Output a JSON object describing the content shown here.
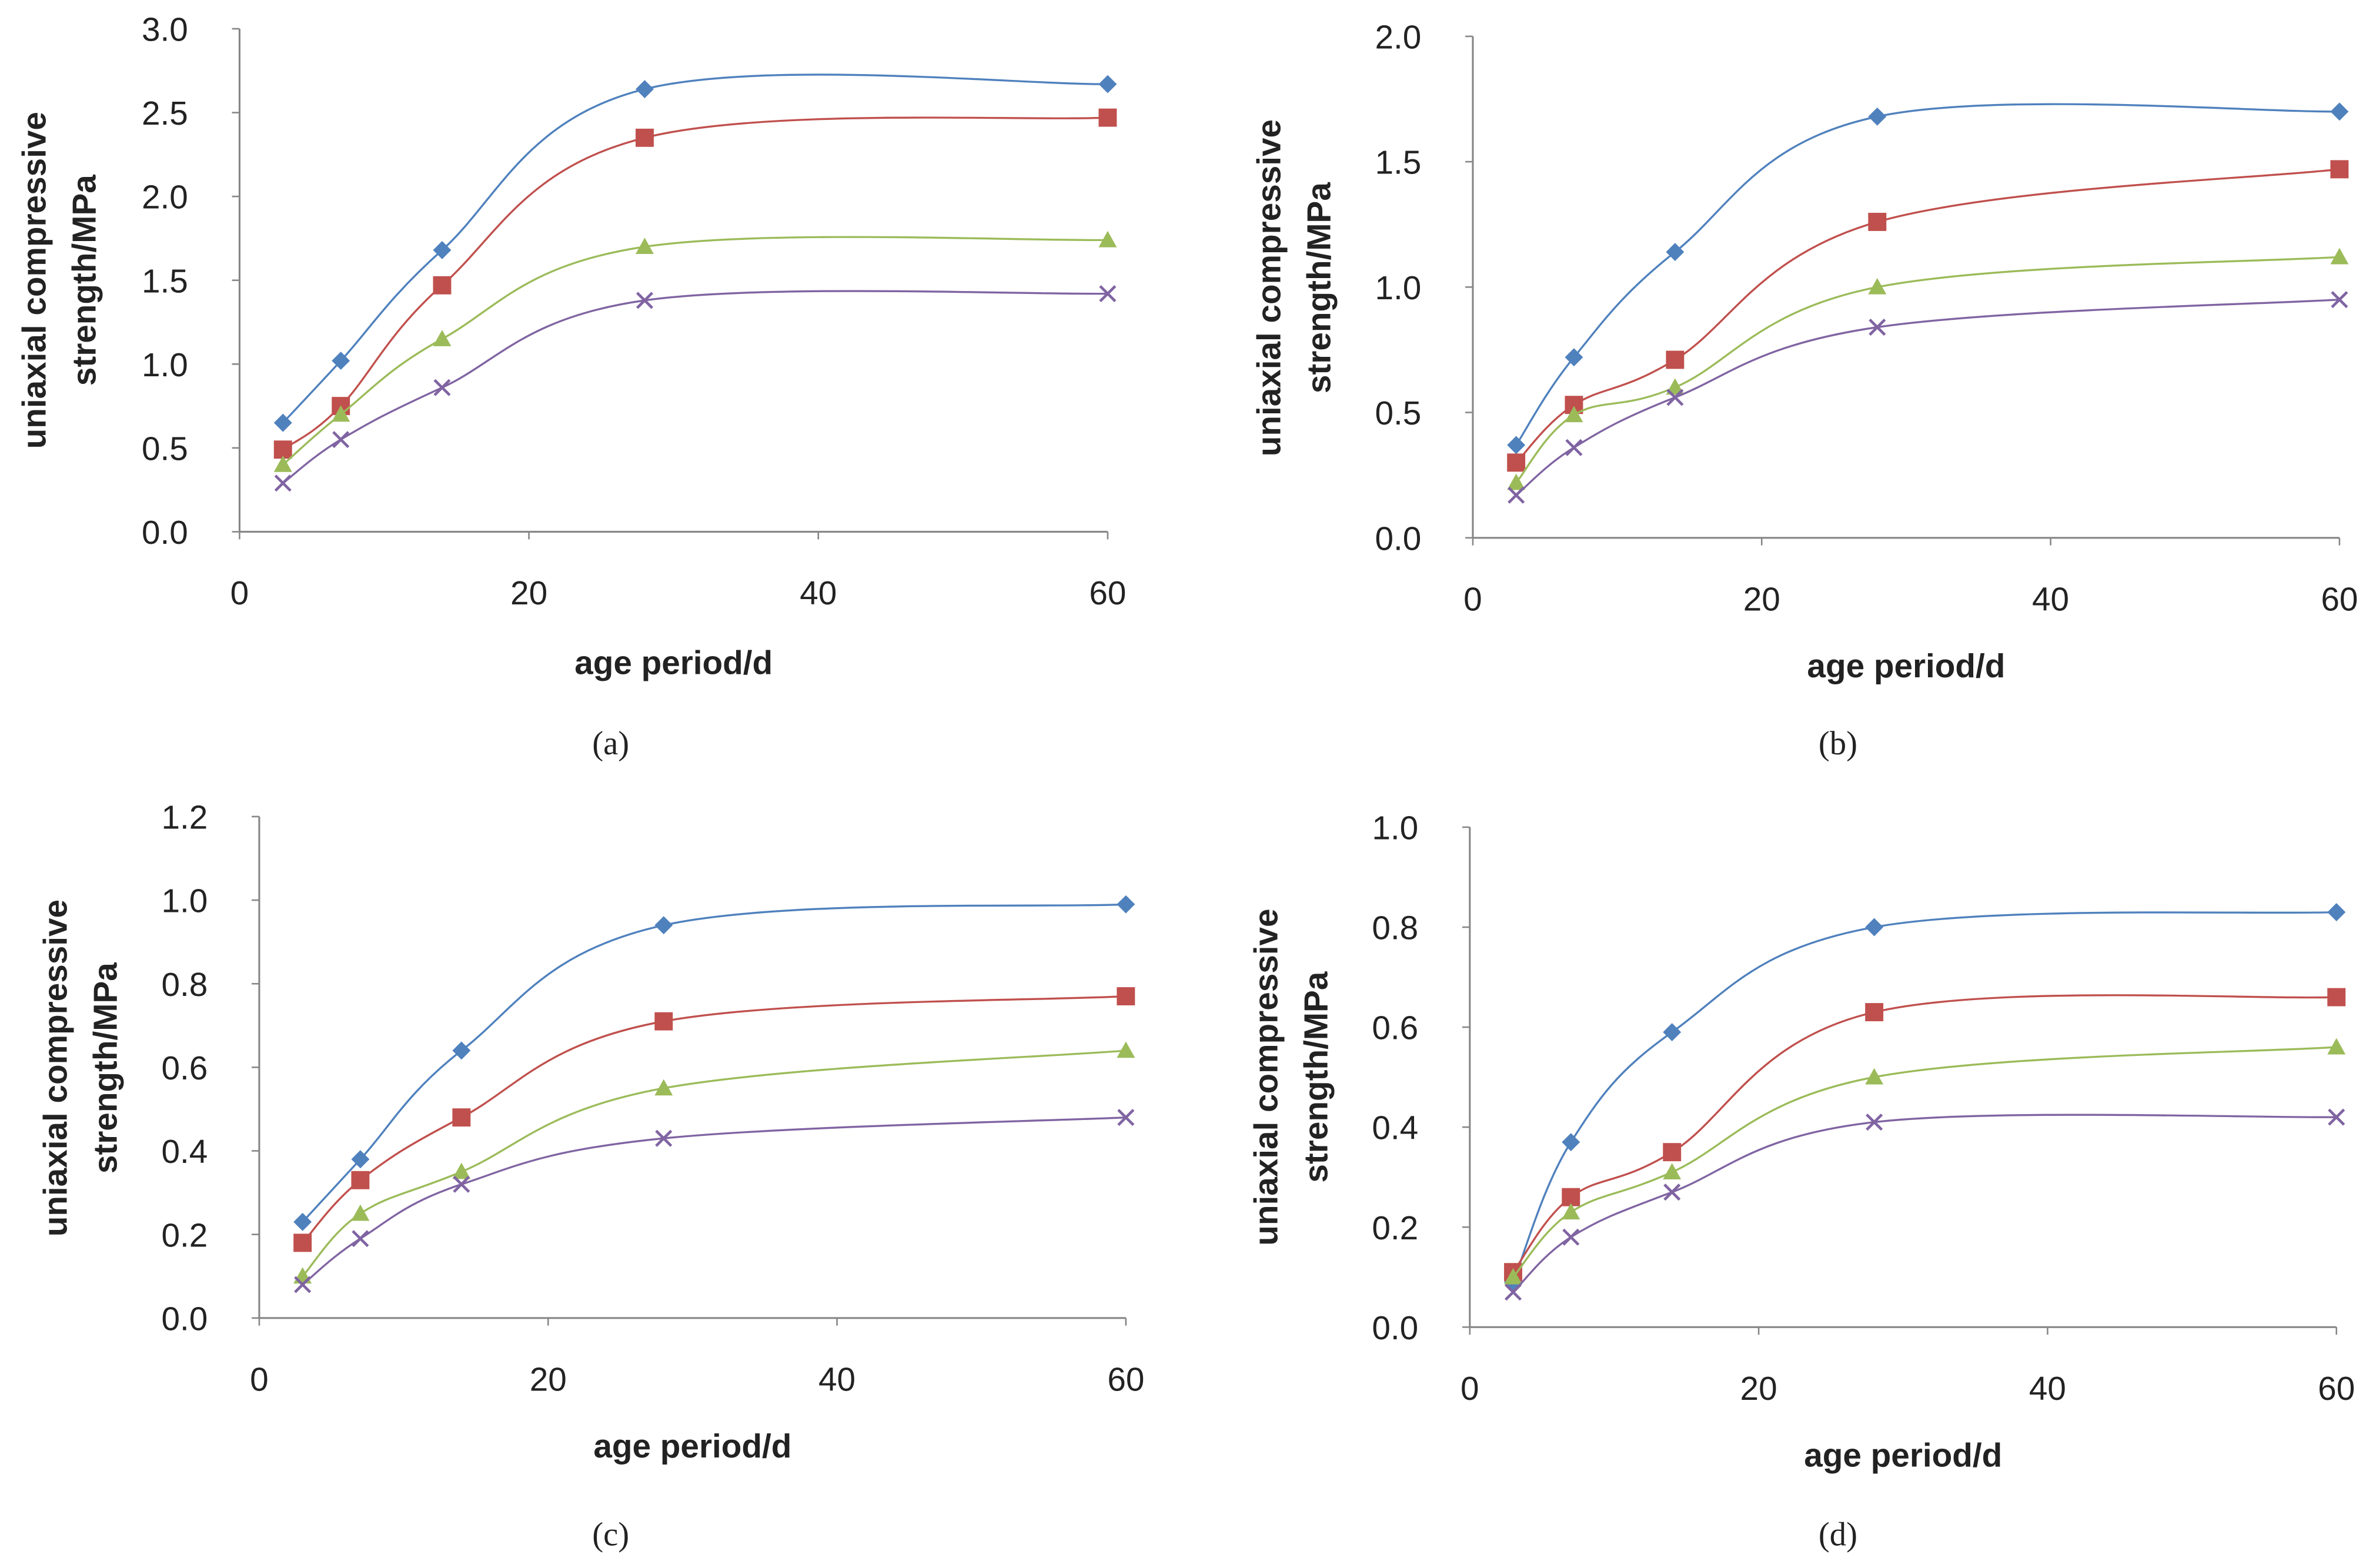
{
  "chart_data": [
    {
      "type": "line",
      "panel_label": "(a)",
      "xlabel": "age period/d",
      "ylabel": [
        "uniaxial compressive",
        "strength/MPa"
      ],
      "xlim": [
        0,
        60
      ],
      "xticks": [
        "0",
        "20",
        "40",
        "60"
      ],
      "ylim": [
        0,
        3.0
      ],
      "yticks": [
        "0.0",
        "0.5",
        "1.0",
        "1.5",
        "2.0",
        "2.5",
        "3.0"
      ],
      "x": [
        3,
        7,
        14,
        28,
        60
      ],
      "series": [
        {
          "marker": "diamond",
          "color": "#4F81BD",
          "values": [
            0.65,
            1.02,
            1.68,
            2.64,
            2.67
          ]
        },
        {
          "marker": "square",
          "color": "#C0504D",
          "values": [
            0.49,
            0.75,
            1.47,
            2.35,
            2.47
          ]
        },
        {
          "marker": "triangle",
          "color": "#9BBB59",
          "values": [
            0.4,
            0.7,
            1.15,
            1.7,
            1.74
          ]
        },
        {
          "marker": "x",
          "color": "#8064A2",
          "values": [
            0.29,
            0.55,
            0.86,
            1.38,
            1.42
          ]
        }
      ]
    },
    {
      "type": "line",
      "panel_label": "(b)",
      "xlabel": "age period/d",
      "ylabel": [
        "uniaxial compressive",
        "strength/MPa"
      ],
      "xlim": [
        0,
        60
      ],
      "xticks": [
        "0",
        "20",
        "40",
        "60"
      ],
      "ylim": [
        0,
        2.0
      ],
      "yticks": [
        "0.0",
        "0.5",
        "1.0",
        "1.5",
        "2.0"
      ],
      "x": [
        3,
        7,
        14,
        28,
        60
      ],
      "series": [
        {
          "marker": "diamond",
          "color": "#4F81BD",
          "values": [
            0.37,
            0.72,
            1.14,
            1.68,
            1.7
          ]
        },
        {
          "marker": "square",
          "color": "#C0504D",
          "values": [
            0.3,
            0.53,
            0.71,
            1.26,
            1.47
          ]
        },
        {
          "marker": "triangle",
          "color": "#9BBB59",
          "values": [
            0.22,
            0.49,
            0.6,
            1.0,
            1.12
          ]
        },
        {
          "marker": "x",
          "color": "#8064A2",
          "values": [
            0.17,
            0.36,
            0.56,
            0.84,
            0.95
          ]
        }
      ]
    },
    {
      "type": "line",
      "panel_label": "(c)",
      "xlabel": "age period/d",
      "ylabel": [
        "uniaxial compressive",
        "strength/MPa"
      ],
      "xlim": [
        0,
        60
      ],
      "xticks": [
        "0",
        "20",
        "40",
        "60"
      ],
      "ylim": [
        0,
        1.2
      ],
      "yticks": [
        "0.0",
        "0.2",
        "0.4",
        "0.6",
        "0.8",
        "1.0",
        "1.2"
      ],
      "x": [
        3,
        7,
        14,
        28,
        60
      ],
      "series": [
        {
          "marker": "diamond",
          "color": "#4F81BD",
          "values": [
            0.23,
            0.38,
            0.64,
            0.94,
            0.99
          ]
        },
        {
          "marker": "square",
          "color": "#C0504D",
          "values": [
            0.18,
            0.33,
            0.48,
            0.71,
            0.77
          ]
        },
        {
          "marker": "triangle",
          "color": "#9BBB59",
          "values": [
            0.1,
            0.25,
            0.35,
            0.55,
            0.64
          ]
        },
        {
          "marker": "x",
          "color": "#8064A2",
          "values": [
            0.08,
            0.19,
            0.32,
            0.43,
            0.48
          ]
        }
      ]
    },
    {
      "type": "line",
      "panel_label": "(d)",
      "xlabel": "age period/d",
      "ylabel": [
        "uniaxial compressive",
        "strength/MPa"
      ],
      "xlim": [
        0,
        60
      ],
      "xticks": [
        "0",
        "20",
        "40",
        "60"
      ],
      "ylim": [
        0,
        1.0
      ],
      "yticks": [
        "0.0",
        "0.2",
        "0.4",
        "0.6",
        "0.8",
        "1.0"
      ],
      "x": [
        3,
        7,
        14,
        28,
        60
      ],
      "series": [
        {
          "marker": "diamond",
          "color": "#4F81BD",
          "values": [
            0.09,
            0.37,
            0.59,
            0.8,
            0.83
          ]
        },
        {
          "marker": "square",
          "color": "#C0504D",
          "values": [
            0.11,
            0.26,
            0.35,
            0.63,
            0.66
          ]
        },
        {
          "marker": "triangle",
          "color": "#9BBB59",
          "values": [
            0.1,
            0.23,
            0.31,
            0.5,
            0.56
          ]
        },
        {
          "marker": "x",
          "color": "#8064A2",
          "values": [
            0.07,
            0.18,
            0.27,
            0.41,
            0.42
          ]
        }
      ]
    }
  ]
}
